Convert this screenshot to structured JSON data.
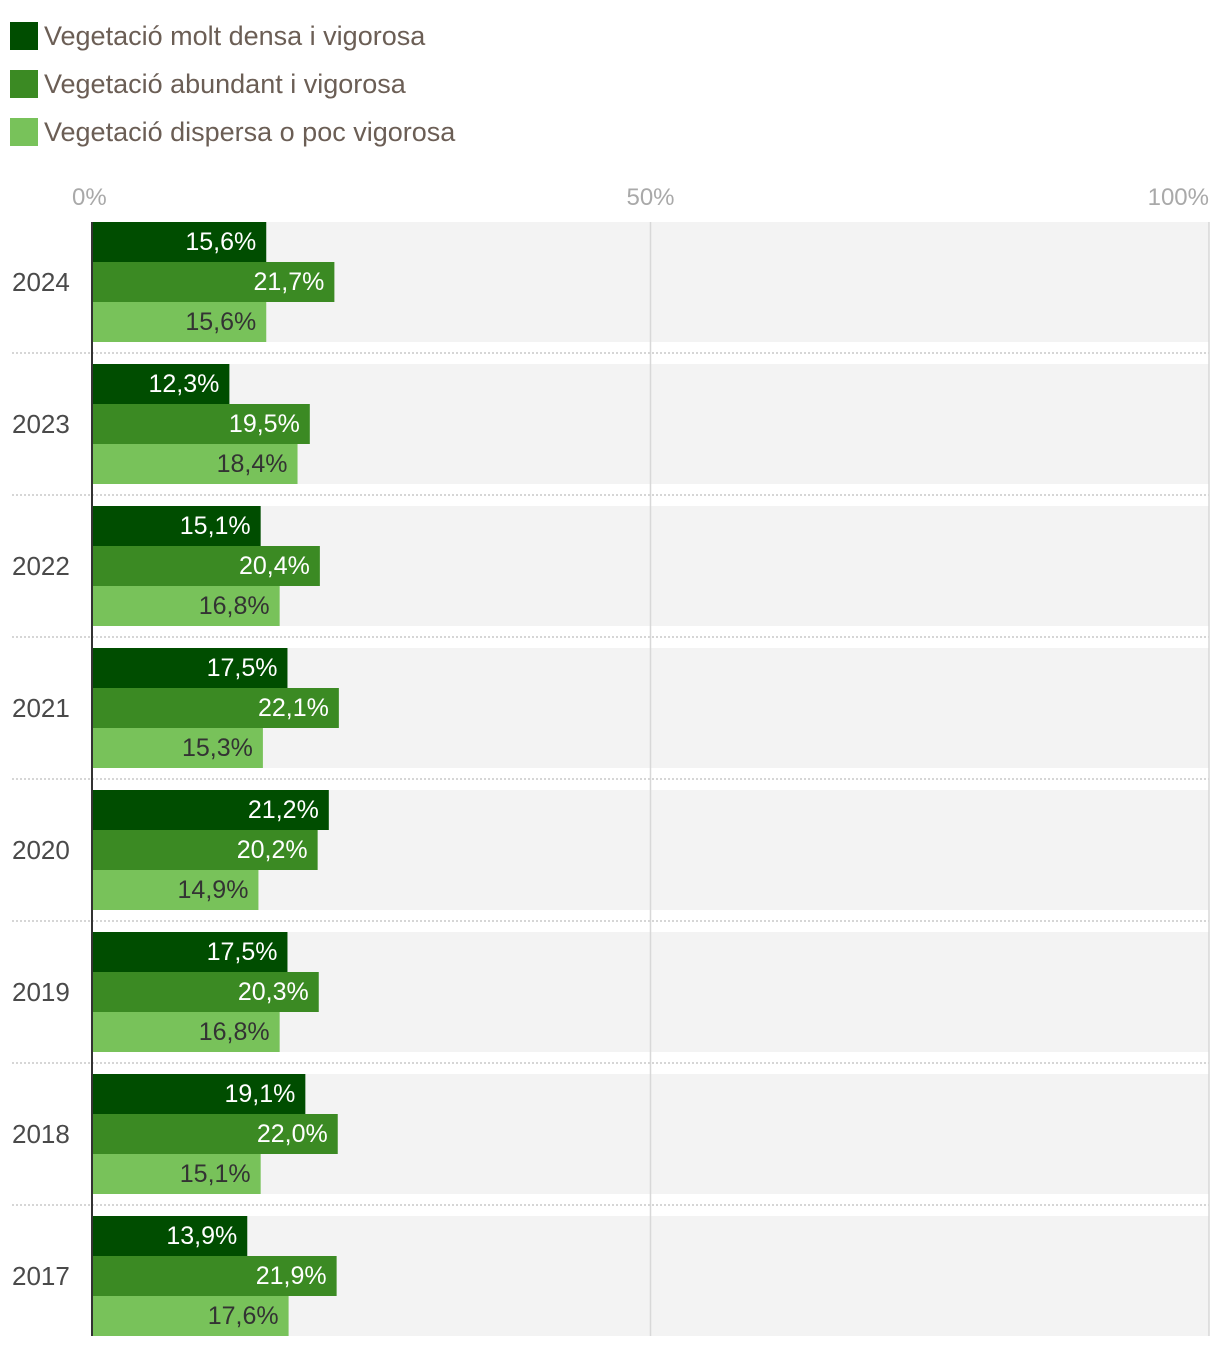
{
  "legend": [
    {
      "label": "Vegetació molt densa i vigorosa",
      "color": "#004d00"
    },
    {
      "label": "Vegetació abundant i vigorosa",
      "color": "#3b8a23"
    },
    {
      "label": "Vegetació dispersa o poc vigorosa",
      "color": "#78c25a"
    }
  ],
  "chart_data": {
    "type": "bar",
    "orientation": "horizontal",
    "categories": [
      "2024",
      "2023",
      "2022",
      "2021",
      "2020",
      "2019",
      "2018",
      "2017"
    ],
    "series": [
      {
        "name": "Vegetació molt densa i vigorosa",
        "color": "#004d00",
        "label_color": "#ffffff",
        "values": [
          15.6,
          12.3,
          15.1,
          17.5,
          21.2,
          17.5,
          19.1,
          13.9
        ],
        "labels": [
          "15,6%",
          "12,3%",
          "15,1%",
          "17,5%",
          "21,2%",
          "17,5%",
          "19,1%",
          "13,9%"
        ]
      },
      {
        "name": "Vegetació abundant i vigorosa",
        "color": "#3b8a23",
        "label_color": "#ffffff",
        "values": [
          21.7,
          19.5,
          20.4,
          22.1,
          20.2,
          20.3,
          22.0,
          21.9
        ],
        "labels": [
          "21,7%",
          "19,5%",
          "20,4%",
          "22,1%",
          "20,2%",
          "20,3%",
          "22,0%",
          "21,9%"
        ]
      },
      {
        "name": "Vegetació dispersa o poc vigorosa",
        "color": "#78c25a",
        "label_color": "#333333",
        "values": [
          15.6,
          18.4,
          16.8,
          15.3,
          14.9,
          16.8,
          15.1,
          17.6
        ],
        "labels": [
          "15,6%",
          "18,4%",
          "16,8%",
          "15,3%",
          "14,9%",
          "16,8%",
          "15,1%",
          "17,6%"
        ]
      }
    ],
    "xlim": [
      0,
      100
    ],
    "xticks": [
      0,
      50,
      100
    ],
    "xtick_labels": [
      "0%",
      "50%",
      "100%"
    ],
    "axis_position": "top",
    "grid": true,
    "legend_position": "top-left",
    "background_color": "#f3f3f3"
  }
}
